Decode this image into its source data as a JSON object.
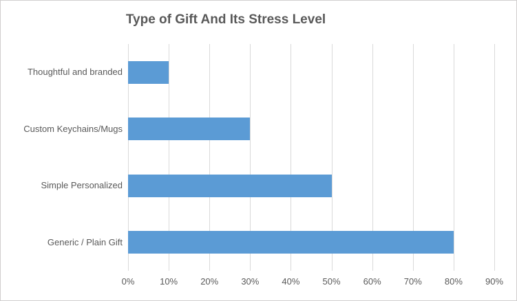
{
  "chart_data": {
    "type": "bar",
    "orientation": "horizontal",
    "title": "Type of Gift And Its Stress Level",
    "categories": [
      "Thoughtful and branded",
      "Custom Keychains/Mugs",
      "Simple Personalized",
      "Generic / Plain Gift"
    ],
    "values": [
      10,
      30,
      50,
      80
    ],
    "unit": "%",
    "x_ticks": [
      "0%",
      "10%",
      "20%",
      "30%",
      "40%",
      "50%",
      "60%",
      "70%",
      "80%",
      "90%"
    ],
    "xlim": [
      0,
      90
    ],
    "xlabel": "",
    "ylabel": "",
    "grid": "vertical-only",
    "legend": "none",
    "colors": {
      "bar": "#5b9bd5",
      "gridline": "#d9d9d9",
      "title_text": "#595959",
      "axis_text": "#595959",
      "background": "#ffffff",
      "border": "#d0cece"
    }
  }
}
